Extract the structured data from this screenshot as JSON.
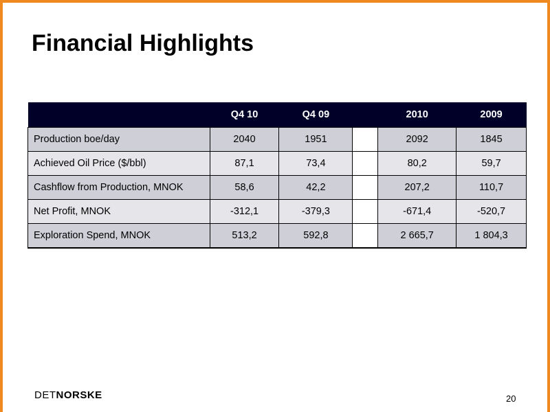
{
  "title": "Financial Highlights",
  "table": {
    "headers": [
      "",
      "Q4 10",
      "Q4 09",
      "",
      "2010",
      "2009"
    ],
    "rows": [
      {
        "label": "Production boe/day",
        "q4_10": "2040",
        "q4_09": "1951",
        "y2010": "2092",
        "y2009": "1845"
      },
      {
        "label": "Achieved Oil Price ($/bbl)",
        "q4_10": "87,1",
        "q4_09": "73,4",
        "y2010": "80,2",
        "y2009": "59,7"
      },
      {
        "label": "Cashflow from Production, MNOK",
        "q4_10": "58,6",
        "q4_09": "42,2",
        "y2010": "207,2",
        "y2009": "110,7"
      },
      {
        "label": "Net Profit, MNOK",
        "q4_10": "-312,1",
        "q4_09": "-379,3",
        "y2010": "-671,4",
        "y2009": "-520,7"
      },
      {
        "label": "Exploration Spend, MNOK",
        "q4_10": "513,2",
        "q4_09": "592,8",
        "y2010": "2 665,7",
        "y2009": "1 804,3"
      }
    ]
  },
  "logo": {
    "part1": "DET",
    "part2": "NORSKE"
  },
  "page_number": "20",
  "colors": {
    "accent_border": "#ee8a1f",
    "header_bg": "#000028",
    "row_dark": "#cfcfd8",
    "row_light": "#e5e5ea"
  }
}
